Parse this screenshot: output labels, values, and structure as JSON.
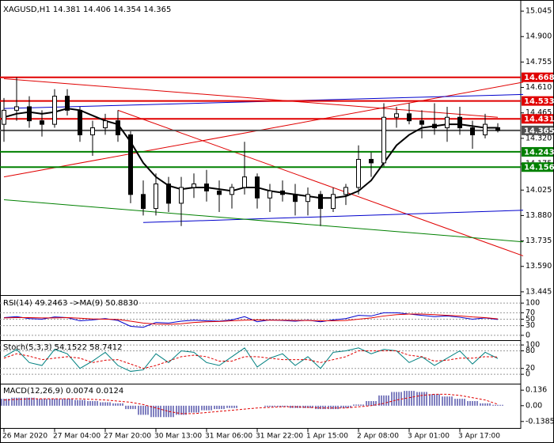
{
  "chart_data": [
    {
      "type": "candlestick",
      "title": "XAGUSD,H1  14.381 14.406 14.354 14.365",
      "categories": [
        "26 Mar 2020",
        null,
        null,
        null,
        "27 Mar 04:00",
        null,
        null,
        null,
        "27 Mar 20:00",
        null,
        null,
        null,
        "30 Mar 13:00",
        null,
        null,
        null,
        "31 Mar 06:00",
        null,
        null,
        null,
        "31 Mar 22:00",
        null,
        null,
        null,
        "1 Apr 15:00",
        null,
        null,
        null,
        "2 Apr 08:00",
        null,
        null,
        null,
        "3 Apr 01:00",
        null,
        null,
        null,
        "3 Apr 17:00",
        null,
        null,
        null
      ],
      "open": [
        14.4,
        14.48,
        14.5,
        14.42,
        14.4,
        14.56,
        14.48,
        14.34,
        14.38,
        14.42,
        14.34,
        14.0,
        13.92,
        14.06,
        13.95,
        14.04,
        14.06,
        14.02,
        14.0,
        14.04,
        14.1,
        13.98,
        14.02,
        14.0,
        13.96,
        14.0,
        13.92,
        14.0,
        14.04,
        14.2,
        14.18,
        14.44,
        14.46,
        14.42,
        14.4,
        14.38,
        14.44,
        14.38,
        14.34,
        14.381
      ],
      "high": [
        14.55,
        14.668,
        14.56,
        14.48,
        14.6,
        14.6,
        14.5,
        14.42,
        14.46,
        14.48,
        14.36,
        14.08,
        14.12,
        14.1,
        14.1,
        14.12,
        14.14,
        14.08,
        14.06,
        14.3,
        14.12,
        14.06,
        14.08,
        14.06,
        14.04,
        14.02,
        14.04,
        14.06,
        14.28,
        14.24,
        14.52,
        14.5,
        14.52,
        14.48,
        14.52,
        14.5,
        14.5,
        14.42,
        14.46,
        14.406
      ],
      "low": [
        14.3,
        14.42,
        14.38,
        14.33,
        14.38,
        14.45,
        14.3,
        14.22,
        14.34,
        14.3,
        13.95,
        13.88,
        13.88,
        13.9,
        13.82,
        13.98,
        13.96,
        13.9,
        13.92,
        14.0,
        13.92,
        13.9,
        13.96,
        13.88,
        13.88,
        13.82,
        13.9,
        13.94,
        14.0,
        14.1,
        14.16,
        14.38,
        14.4,
        14.32,
        14.34,
        14.3,
        14.34,
        14.26,
        14.32,
        14.354
      ],
      "close": [
        14.48,
        14.5,
        14.42,
        14.4,
        14.56,
        14.48,
        14.34,
        14.38,
        14.42,
        14.34,
        14.0,
        13.92,
        14.06,
        13.95,
        14.04,
        14.06,
        14.02,
        14.0,
        14.04,
        14.1,
        13.98,
        14.02,
        14.0,
        13.96,
        14.0,
        13.92,
        14.0,
        14.04,
        14.2,
        14.18,
        14.44,
        14.46,
        14.42,
        14.4,
        14.38,
        14.44,
        14.38,
        14.34,
        14.4,
        14.365
      ],
      "up_color": "#ffffff",
      "down_color": "#000000",
      "candle_stroke": "#000000",
      "ma": {
        "color": "#000000",
        "values": [
          14.44,
          14.46,
          14.47,
          14.46,
          14.47,
          14.49,
          14.48,
          14.45,
          14.42,
          14.4,
          14.3,
          14.18,
          14.1,
          14.05,
          14.03,
          14.04,
          14.04,
          14.03,
          14.02,
          14.04,
          14.04,
          14.02,
          14.01,
          14.0,
          13.99,
          13.98,
          13.98,
          13.99,
          14.02,
          14.08,
          14.18,
          14.28,
          14.34,
          14.38,
          14.39,
          14.4,
          14.4,
          14.39,
          14.38,
          14.38
        ]
      },
      "levels": [
        {
          "value": 14.668,
          "color": "#e00000"
        },
        {
          "value": 14.533,
          "color": "#e00000"
        },
        {
          "value": 14.431,
          "color": "#e00000"
        },
        {
          "value": 14.365,
          "color": "#505050"
        },
        {
          "value": 14.243,
          "color": "#008000"
        },
        {
          "value": 14.156,
          "color": "#008000"
        }
      ],
      "trendlines": [
        {
          "color": "#e00000",
          "x": [
            0,
            39
          ],
          "values": [
            14.66,
            14.44
          ]
        },
        {
          "color": "#e00000",
          "x": [
            0,
            41
          ],
          "values": [
            14.1,
            14.64
          ]
        },
        {
          "color": "#e00000",
          "x": [
            9,
            41
          ],
          "values": [
            14.48,
            13.65
          ]
        },
        {
          "color": "#0000cc",
          "x": [
            0,
            41
          ],
          "values": [
            14.49,
            14.57
          ]
        },
        {
          "color": "#0000cc",
          "x": [
            11,
            41
          ],
          "values": [
            13.84,
            13.91
          ]
        },
        {
          "color": "#008000",
          "x": [
            0,
            41
          ],
          "values": [
            13.97,
            13.73
          ]
        }
      ],
      "ylim": [
        13.431,
        15.086
      ],
      "yticks": [
        15.045,
        {
          "value": 14.9,
          "label": "14.900"
        },
        14.755,
        {
          "value": 14.61,
          "label": "14.610"
        },
        14.465,
        {
          "value": 14.32,
          "label": "14.320"
        },
        14.175,
        14.025,
        {
          "value": 13.88,
          "label": "13.880"
        },
        13.735,
        {
          "value": 13.59,
          "label": "13.590"
        },
        13.445
      ],
      "grid": false
    },
    {
      "type": "line",
      "title": "RSI(14) 49.2463  ->MA(9) 50.8830",
      "series": [
        {
          "color": "#0000cc",
          "dashed": false,
          "values": [
            55,
            58,
            52,
            50,
            57,
            55,
            45,
            48,
            52,
            46,
            28,
            25,
            40,
            38,
            44,
            47,
            45,
            44,
            48,
            58,
            42,
            48,
            46,
            44,
            47,
            42,
            48,
            52,
            62,
            60,
            70,
            70,
            66,
            62,
            58,
            60,
            56,
            50,
            54,
            49
          ]
        },
        {
          "color": "#e00000",
          "dashed": false,
          "values": [
            54,
            55,
            55,
            54,
            54,
            55,
            53,
            51,
            50,
            49,
            44,
            38,
            35,
            34,
            36,
            40,
            42,
            43,
            45,
            47,
            48,
            47,
            47,
            46,
            46,
            45,
            45,
            46,
            50,
            54,
            60,
            64,
            66,
            66,
            64,
            62,
            60,
            57,
            55,
            51
          ]
        }
      ],
      "ylim": [
        -15,
        117.5
      ],
      "yticks": [
        100,
        70,
        50,
        30,
        0
      ],
      "grid": true
    },
    {
      "type": "line",
      "title": "Stoch(5,3,3) 54.1522 58.7412",
      "series": [
        {
          "color": "#008080",
          "dashed": false,
          "values": [
            60,
            85,
            40,
            30,
            85,
            70,
            20,
            45,
            75,
            30,
            10,
            15,
            70,
            40,
            80,
            75,
            40,
            30,
            60,
            90,
            25,
            55,
            70,
            30,
            60,
            20,
            75,
            80,
            90,
            70,
            85,
            80,
            40,
            60,
            30,
            55,
            80,
            35,
            75,
            54
          ]
        },
        {
          "color": "#e00000",
          "dashed": true,
          "values": [
            55,
            70,
            62,
            50,
            55,
            60,
            55,
            40,
            48,
            50,
            35,
            20,
            30,
            45,
            60,
            65,
            60,
            45,
            45,
            60,
            60,
            55,
            50,
            50,
            50,
            40,
            50,
            60,
            80,
            80,
            80,
            80,
            65,
            60,
            45,
            48,
            55,
            55,
            60,
            59
          ]
        }
      ],
      "ylim": [
        -32,
        111
      ],
      "yticks": [
        100,
        80,
        20,
        0
      ],
      "grid": true
    },
    {
      "type": "macd",
      "title": "MACD(12,26,9) 0.0074 0.0124",
      "series": [
        {
          "color": "#000080",
          "style": "bar",
          "values": [
            0.06,
            0.07,
            0.07,
            0.06,
            0.06,
            0.06,
            0.05,
            0.04,
            0.03,
            0.02,
            -0.03,
            -0.08,
            -0.1,
            -0.1,
            -0.08,
            -0.06,
            -0.04,
            -0.03,
            -0.02,
            0.0,
            0.0,
            -0.01,
            -0.01,
            -0.02,
            -0.02,
            -0.03,
            -0.03,
            -0.02,
            0.01,
            0.04,
            0.09,
            0.12,
            0.13,
            0.12,
            0.1,
            0.08,
            0.06,
            0.04,
            0.02,
            0.007
          ]
        },
        {
          "color": "#e00000",
          "style": "dashed",
          "values": [
            0.05,
            0.055,
            0.06,
            0.06,
            0.06,
            0.06,
            0.06,
            0.055,
            0.05,
            0.04,
            0.03,
            0.01,
            -0.02,
            -0.05,
            -0.07,
            -0.07,
            -0.06,
            -0.05,
            -0.04,
            -0.03,
            -0.02,
            -0.015,
            -0.01,
            -0.01,
            -0.015,
            -0.02,
            -0.02,
            -0.02,
            -0.01,
            0.0,
            0.02,
            0.05,
            0.07,
            0.09,
            0.1,
            0.1,
            0.09,
            0.07,
            0.05,
            0.012
          ]
        }
      ],
      "ylim": [
        -0.1885,
        0.179
      ],
      "yticks": [
        0.136,
        {
          "value": 0,
          "label": "0.00"
        },
        -0.1385
      ],
      "grid": false
    }
  ]
}
